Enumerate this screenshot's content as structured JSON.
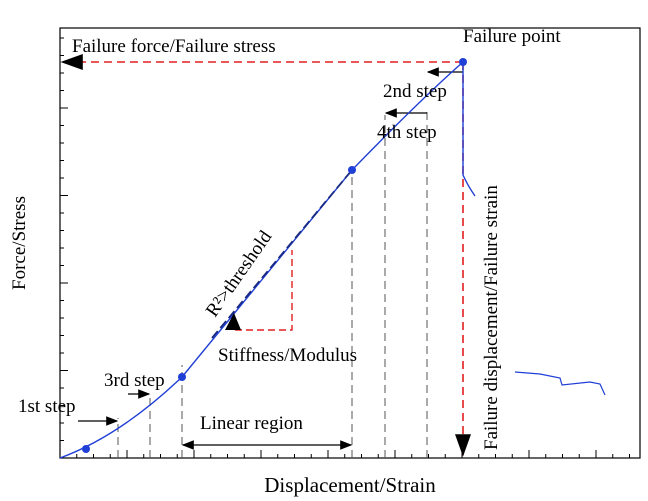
{
  "axes": {
    "y_label": "Force/Stress",
    "x_label": "Displacement/Strain"
  },
  "annotations": {
    "failure_force": "Failure force/Failure stress",
    "failure_point": "Failure point",
    "second_step": "2nd step",
    "fourth_step": "4th step",
    "r2": "R²>threshold",
    "stiffness": "Stiffness/Modulus",
    "third_step": "3rd step",
    "first_step": "1st step",
    "linear_region": "Linear region",
    "failure_displacement": "Failure displacement/Failure strain"
  }
}
